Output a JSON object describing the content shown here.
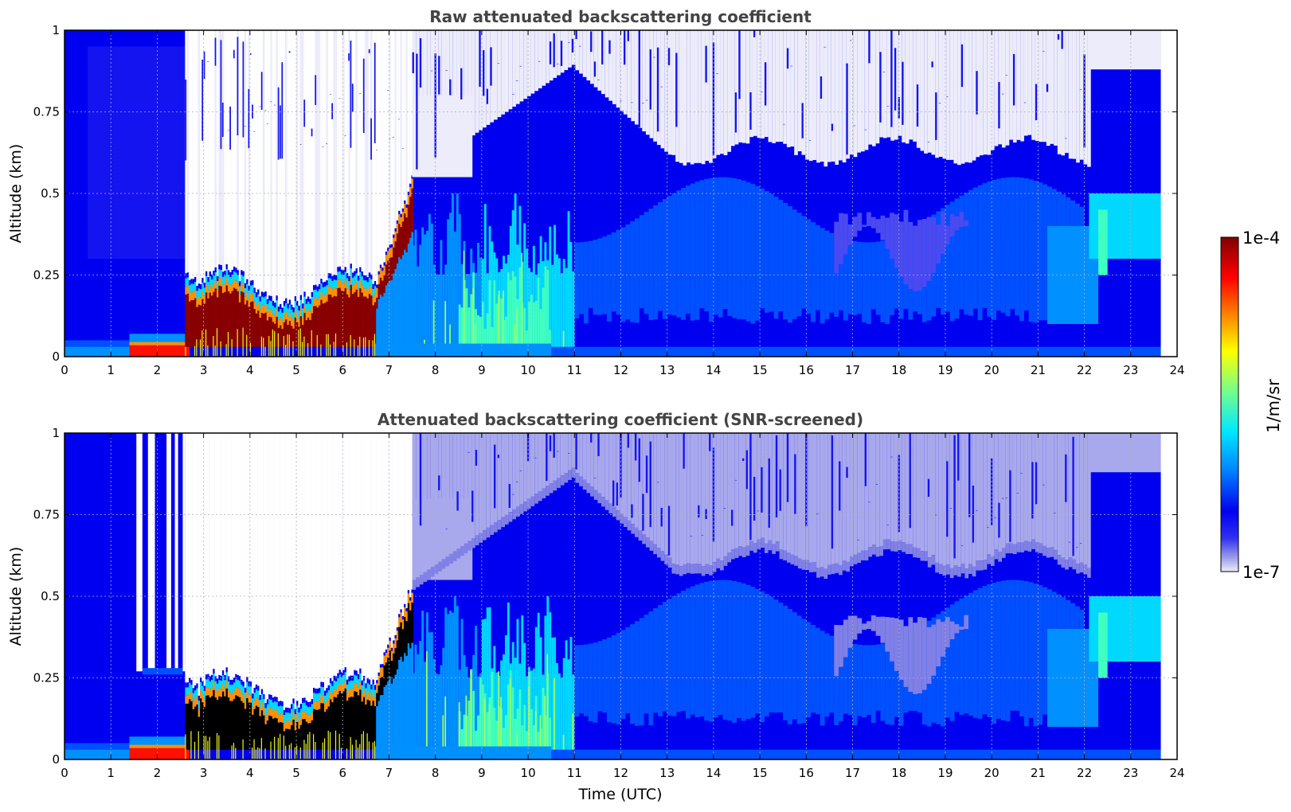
{
  "chart_data": [
    {
      "type": "heatmap",
      "title": "Raw attenuated backscattering coefficient",
      "xlabel": "",
      "ylabel": "Altitude (km)",
      "xlim": [
        0,
        24
      ],
      "ylim": [
        0,
        1
      ],
      "xticks": [
        "0",
        "1",
        "2",
        "3",
        "4",
        "5",
        "6",
        "7",
        "8",
        "9",
        "10",
        "11",
        "12",
        "13",
        "14",
        "15",
        "16",
        "17",
        "18",
        "19",
        "20",
        "21",
        "22",
        "23",
        "24"
      ],
      "yticks": [
        "0",
        "0.25",
        "0.5",
        "0.75",
        "1"
      ],
      "grid": true,
      "data_end_time": 23.65,
      "features": [
        {
          "label": "dense aerosol layer",
          "time": [
            1.4,
            6.7
          ],
          "top_km": [
            0.05,
            0.25
          ],
          "level": "high"
        },
        {
          "label": "signal dropout above layer",
          "time": [
            2.7,
            7.5
          ],
          "alt_km": [
            0.25,
            1.0
          ],
          "level": "none"
        },
        {
          "label": "rising mixed layer",
          "time": [
            6.7,
            10.5
          ],
          "top_km": [
            0.2,
            0.55
          ],
          "level": "medium"
        },
        {
          "label": "residual layer top",
          "time": [
            10.5,
            22.1
          ],
          "top_km": [
            0.6,
            0.9
          ],
          "level": "low"
        }
      ]
    },
    {
      "type": "heatmap",
      "title": "Attenuated backscattering coefficient (SNR-screened)",
      "xlabel": "Time (UTC)",
      "ylabel": "Altitude (km)",
      "xlim": [
        0,
        24
      ],
      "ylim": [
        0,
        1
      ],
      "xticks": [
        "0",
        "1",
        "2",
        "3",
        "4",
        "5",
        "6",
        "7",
        "8",
        "9",
        "10",
        "11",
        "12",
        "13",
        "14",
        "15",
        "16",
        "17",
        "18",
        "19",
        "20",
        "21",
        "22",
        "23",
        "24"
      ],
      "yticks": [
        "0",
        "0.25",
        "0.5",
        "0.75",
        "1"
      ],
      "grid": true,
      "data_end_time": 23.65
    }
  ],
  "colorbar": {
    "label": "1/m/sr",
    "max_label": "1e-4",
    "min_label": "1e-7",
    "scale": "log",
    "range": [
      1e-07,
      0.0001
    ],
    "colormap": [
      "#ececfa",
      "#9f9fe8",
      "#0000f0",
      "#0080ff",
      "#00ffff",
      "#80ff80",
      "#ffff00",
      "#ff8000",
      "#ff0000",
      "#800000"
    ]
  }
}
